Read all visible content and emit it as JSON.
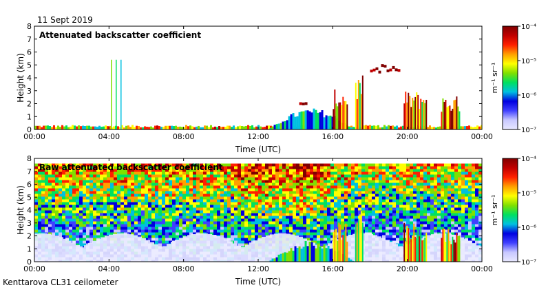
{
  "header": {
    "date": "11 Sept 2019"
  },
  "footer": {
    "instrument": "Kenttarova CL31 ceilometer"
  },
  "colors": {
    "scale": [
      "#e8e8ff",
      "#c8c8ff",
      "#4040ff",
      "#0000e0",
      "#00c0e0",
      "#00e060",
      "#80e000",
      "#ffff00",
      "#ffa000",
      "#ff2000",
      "#c00000",
      "#800000"
    ],
    "frame": "#000000"
  },
  "chart_data": [
    {
      "type": "heatmap",
      "title": "Attenuated backscatter coefficient",
      "xlabel": "Time (UTC)",
      "ylabel": "Height (km)",
      "xticks": [
        "00:00",
        "04:00",
        "08:00",
        "12:00",
        "16:00",
        "20:00",
        "00:00"
      ],
      "yticks": [
        "0",
        "1",
        "2",
        "3",
        "4",
        "5",
        "6",
        "7",
        "8"
      ],
      "xlim": [
        0,
        24
      ],
      "ylim": [
        0,
        8
      ],
      "colorbar": {
        "label": "m⁻¹ sr⁻¹",
        "ticks": [
          "10⁻⁷",
          "10⁻⁶",
          "10⁻⁵",
          "10⁻⁴"
        ],
        "scale": "log",
        "range": [
          1e-07,
          0.0001
        ]
      },
      "features": [
        {
          "kind": "surface_layer",
          "x": [
            0,
            24
          ],
          "top_km": 0.25
        },
        {
          "kind": "aerosol_layer",
          "x": [
            12.5,
            18.5
          ],
          "top_km": 1.5
        },
        {
          "kind": "rain_column",
          "x": [
            4.1,
            4.7
          ],
          "top_km": 5.4
        },
        {
          "kind": "cloud",
          "x": [
            14.2,
            14.6
          ],
          "y_km": 2.3
        },
        {
          "kind": "precipitation",
          "x": [
            16.0,
            16.8
          ],
          "top_km": 3.1
        },
        {
          "kind": "precipitation",
          "x": [
            17.2,
            17.6
          ],
          "top_km": 4.2
        },
        {
          "kind": "cloud",
          "x": [
            18.0,
            19.5
          ],
          "y_km": 4.8
        },
        {
          "kind": "precipitation",
          "x": [
            19.8,
            21.0
          ],
          "top_km": 3.0
        },
        {
          "kind": "precipitation",
          "x": [
            21.8,
            22.8
          ],
          "top_km": 2.6
        }
      ]
    },
    {
      "type": "heatmap",
      "title": "Raw attenuated backscatter coefficient",
      "xlabel": "Time (UTC)",
      "ylabel": "Height (km)",
      "xticks": [
        "00:00",
        "04:00",
        "08:00",
        "12:00",
        "16:00",
        "20:00",
        "00:00"
      ],
      "yticks": [
        "0",
        "1",
        "2",
        "3",
        "4",
        "5",
        "6",
        "7",
        "8"
      ],
      "xlim": [
        0,
        24
      ],
      "ylim": [
        0,
        8
      ],
      "colorbar": {
        "label": "m⁻¹ sr⁻¹",
        "ticks": [
          "10⁻⁷",
          "10⁻⁶",
          "10⁻⁵",
          "10⁻⁴"
        ],
        "scale": "log",
        "range": [
          1e-07,
          0.0001
        ]
      },
      "features": [
        {
          "kind": "noise_field",
          "x": [
            0,
            24
          ],
          "y_km": [
            0,
            7.6
          ]
        },
        {
          "kind": "clear_low_region",
          "x": [
            0,
            24
          ],
          "top_km": 2.2
        },
        {
          "kind": "aerosol_layer",
          "x": [
            12.5,
            18.5
          ],
          "top_km": 1.5
        },
        {
          "kind": "precipitation",
          "x": [
            16.0,
            16.8
          ],
          "top_km": 3.1
        },
        {
          "kind": "precipitation",
          "x": [
            17.2,
            17.6
          ],
          "top_km": 4.0
        },
        {
          "kind": "precipitation",
          "x": [
            19.8,
            21.0
          ],
          "top_km": 3.0
        },
        {
          "kind": "precipitation",
          "x": [
            21.8,
            22.8
          ],
          "top_km": 2.6
        }
      ]
    }
  ]
}
